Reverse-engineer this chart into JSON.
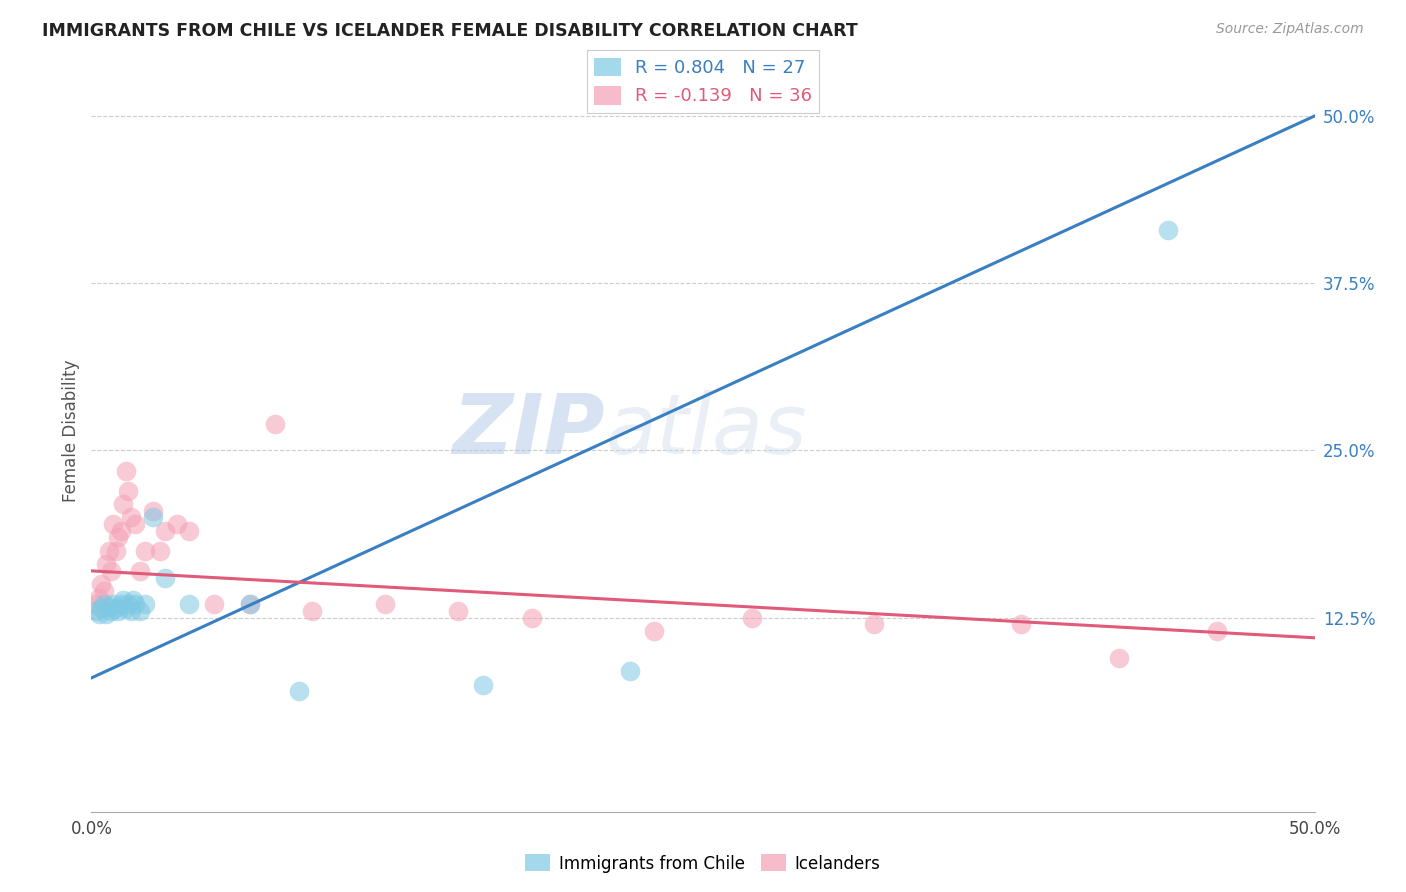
{
  "title": "IMMIGRANTS FROM CHILE VS ICELANDER FEMALE DISABILITY CORRELATION CHART",
  "source": "Source: ZipAtlas.com",
  "ylabel": "Female Disability",
  "xlim": [
    0.0,
    0.5
  ],
  "ylim": [
    -0.02,
    0.55
  ],
  "yticks": [
    0.125,
    0.25,
    0.375,
    0.5
  ],
  "yticklabels": [
    "12.5%",
    "25.0%",
    "37.5%",
    "50.0%"
  ],
  "blue_R": 0.804,
  "blue_N": 27,
  "pink_R": -0.139,
  "pink_N": 36,
  "blue_color": "#7ec8e3",
  "pink_color": "#f4a0b5",
  "blue_line_color": "#3a7fc1",
  "pink_line_color": "#e05a7a",
  "watermark_zip": "ZIP",
  "watermark_atlas": "atlas",
  "legend_blue_label": "Immigrants from Chile",
  "legend_pink_label": "Icelanders",
  "blue_line_x0": 0.0,
  "blue_line_y0": 0.08,
  "blue_line_x1": 0.5,
  "blue_line_y1": 0.5,
  "pink_line_x0": 0.0,
  "pink_line_y0": 0.16,
  "pink_line_x1": 0.5,
  "pink_line_y1": 0.11,
  "blue_points_x": [
    0.002,
    0.003,
    0.004,
    0.005,
    0.006,
    0.007,
    0.008,
    0.009,
    0.01,
    0.011,
    0.012,
    0.013,
    0.014,
    0.015,
    0.016,
    0.017,
    0.018,
    0.02,
    0.022,
    0.025,
    0.03,
    0.04,
    0.065,
    0.085,
    0.16,
    0.22,
    0.44
  ],
  "blue_points_y": [
    0.13,
    0.128,
    0.132,
    0.135,
    0.128,
    0.133,
    0.13,
    0.135,
    0.132,
    0.13,
    0.135,
    0.138,
    0.132,
    0.135,
    0.13,
    0.138,
    0.135,
    0.13,
    0.135,
    0.2,
    0.155,
    0.135,
    0.135,
    0.07,
    0.075,
    0.085,
    0.415
  ],
  "pink_points_x": [
    0.002,
    0.003,
    0.004,
    0.005,
    0.006,
    0.007,
    0.008,
    0.009,
    0.01,
    0.011,
    0.012,
    0.013,
    0.014,
    0.015,
    0.016,
    0.018,
    0.02,
    0.022,
    0.025,
    0.028,
    0.03,
    0.035,
    0.04,
    0.05,
    0.065,
    0.075,
    0.09,
    0.12,
    0.15,
    0.18,
    0.23,
    0.27,
    0.32,
    0.38,
    0.42,
    0.46
  ],
  "pink_points_y": [
    0.135,
    0.14,
    0.15,
    0.145,
    0.165,
    0.175,
    0.16,
    0.195,
    0.175,
    0.185,
    0.19,
    0.21,
    0.235,
    0.22,
    0.2,
    0.195,
    0.16,
    0.175,
    0.205,
    0.175,
    0.19,
    0.195,
    0.19,
    0.135,
    0.135,
    0.27,
    0.13,
    0.135,
    0.13,
    0.125,
    0.115,
    0.125,
    0.12,
    0.12,
    0.095,
    0.115
  ],
  "grid_color": "#cccccc",
  "background_color": "#ffffff"
}
